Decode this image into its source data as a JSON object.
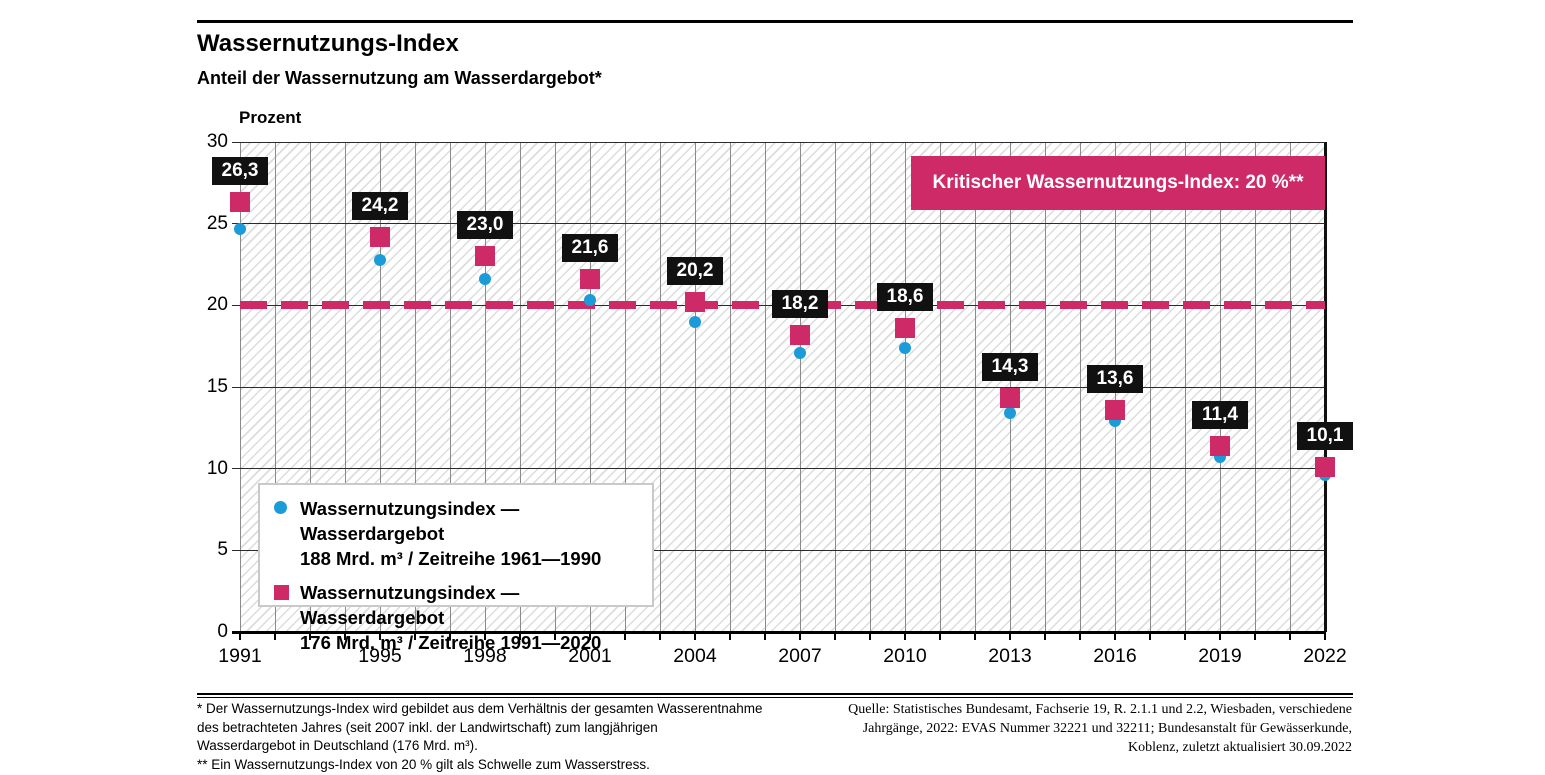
{
  "page": {
    "title": "Wassernutzungs-Index",
    "subtitle": "Anteil der Wassernutzung am Wasserdargebot*",
    "unit_label": "Prozent"
  },
  "chart_data": {
    "type": "scatter",
    "title": "Wassernutzungs-Index",
    "subtitle": "Anteil der Wassernutzung am Wasserdargebot*",
    "ylabel": "Prozent",
    "ylim": [
      0,
      30
    ],
    "yticks": [
      0,
      5,
      10,
      15,
      20,
      25,
      30
    ],
    "xlim": [
      1991,
      2022
    ],
    "xticks": [
      1991,
      1995,
      1998,
      2001,
      2004,
      2007,
      2010,
      2013,
      2016,
      2019,
      2022
    ],
    "grid": {
      "vertical": "one line per year 1991-2022",
      "horizontal": "every 5 percent",
      "background": "diagonal hatch"
    },
    "x": [
      1991,
      1995,
      1998,
      2001,
      2004,
      2007,
      2010,
      2013,
      2016,
      2019,
      2022
    ],
    "series": [
      {
        "name": "Wassernutzungsindex — Wasserdargebot 188 Mrd. m³ / Zeitreihe 1961—1990",
        "marker": "circle",
        "color": "#1B9CD8",
        "values": [
          24.7,
          22.8,
          21.6,
          20.3,
          19.0,
          17.1,
          17.4,
          13.4,
          12.9,
          10.7,
          9.6
        ]
      },
      {
        "name": "Wassernutzungsindex — Wasserdargebot 176 Mrd. m³ / Zeitreihe 1991—2020",
        "marker": "square",
        "color": "#CE2A67",
        "values": [
          26.3,
          24.2,
          23.0,
          21.6,
          20.2,
          18.2,
          18.6,
          14.3,
          13.6,
          11.4,
          10.1
        ],
        "data_labels": [
          "26,3",
          "24,2",
          "23,0",
          "21,6",
          "20,2",
          "18,2",
          "18,6",
          "14,3",
          "13,6",
          "11,4",
          "10,1"
        ]
      }
    ],
    "reference_line": {
      "value": 20,
      "style": "dashed",
      "color": "#CE2A67",
      "label": "Kritischer Wassernutzungs-Index: 20 %**"
    },
    "legend_position": "inside-bottom-left"
  },
  "annotation_box": {
    "text": "Kritischer Wassernutzungs-Index: 20 %**",
    "bg": "#CE2A67"
  },
  "legend": {
    "items": [
      {
        "marker": "circle",
        "color": "#1B9CD8",
        "line1": "Wassernutzungsindex — Wasserdargebot",
        "line2": "188 Mrd. m³ / Zeitreihe 1961—1990"
      },
      {
        "marker": "square",
        "color": "#CE2A67",
        "line1": "Wassernutzungsindex — Wasserdargebot",
        "line2": "176 Mrd. m³ / Zeitreihe 1991—2020"
      }
    ]
  },
  "footnotes": {
    "lines": [
      "* Der Wassernutzungs-Index wird gebildet aus dem Verhältnis der gesamten Wasserentnahme",
      "des  betrachteten Jahres (seit 2007 inkl. der Landwirtschaft) zum langjährigen",
      "Wasserdargebot in Deutschland (176 Mrd. m³).",
      "** Ein Wassernutzungs-Index von 20 % gilt als Schwelle zum Wasserstress."
    ]
  },
  "source": {
    "lines": [
      "Quelle: Statistisches Bundesamt, Fachserie 19, R. 2.1.1 und 2.2, Wiesbaden, verschiedene",
      "Jahrgänge, 2022: EVAS Nummer 32221 und 32211; Bundesanstalt für Gewässerkunde,",
      "Koblenz, zuletzt aktualisiert 30.09.2022"
    ]
  },
  "colors": {
    "series_blue": "#1B9CD8",
    "series_pink": "#CE2A67",
    "label_box_bg": "#111111",
    "grid_vertical": "#8a8a8a",
    "grid_horizontal": "#2b2b2b",
    "hatch": "#dcdcdc"
  }
}
